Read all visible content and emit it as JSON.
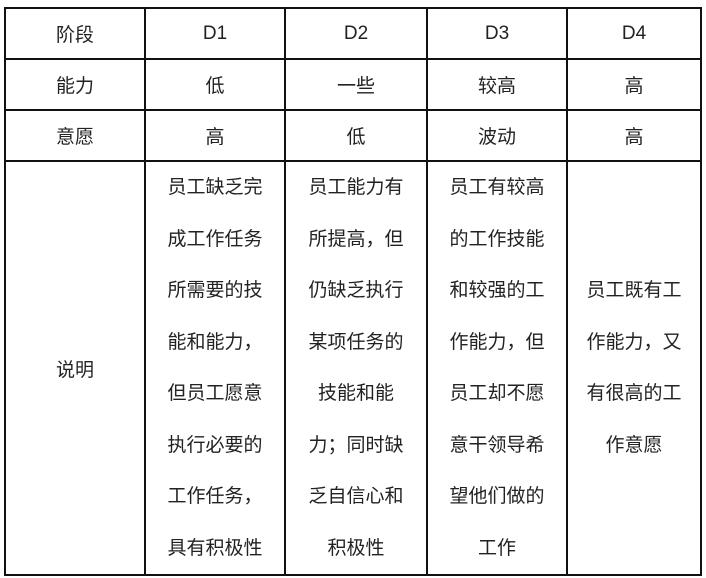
{
  "table": {
    "header": [
      "阶段",
      "D1",
      "D2",
      "D3",
      "D4"
    ],
    "rows": [
      {
        "label": "能力",
        "values": [
          "低",
          "一些",
          "较高",
          "高"
        ]
      },
      {
        "label": "意愿",
        "values": [
          "高",
          "低",
          "波动",
          "高"
        ]
      }
    ],
    "description": {
      "label": "说明",
      "cells": [
        [
          "员工缺乏完",
          "成工作任务",
          "所需要的技",
          "能和能力，",
          "但员工愿意",
          "执行必要的",
          "工作任务，",
          "具有积极性"
        ],
        [
          "员工能力有",
          "所提高，但",
          "仍缺乏执行",
          "某项任务的",
          "技能和能",
          "力；同时缺",
          "乏自信心和",
          "积极性"
        ],
        [
          "员工有较高",
          "的工作技能",
          "和较强的工",
          "作能力，但",
          "员工却不愿",
          "意干领导希",
          "望他们做的",
          "工作"
        ],
        [
          "员工既有工",
          "作能力，又",
          "有很高的工",
          "作意愿"
        ]
      ]
    }
  }
}
